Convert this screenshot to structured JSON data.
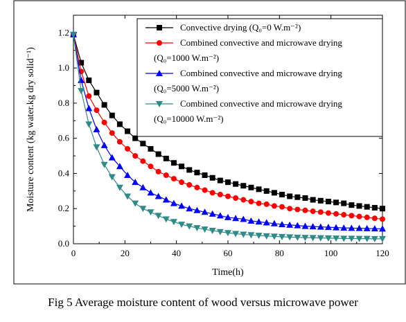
{
  "caption": "Fig 5 Average moisture content of wood versus microwave power",
  "chart_data": {
    "type": "line",
    "xlabel": "Time(h)",
    "ylabel": "Moisture content (kg water.kg dry solid⁻¹)",
    "xlim": [
      0,
      120
    ],
    "ylim": [
      0,
      1.3
    ],
    "xticks": [
      0,
      20,
      40,
      60,
      80,
      100,
      120
    ],
    "yticks": [
      0.0,
      0.2,
      0.4,
      0.6,
      0.8,
      1.0,
      1.2
    ],
    "xtick_labels": [
      "0",
      "20",
      "40",
      "60",
      "80",
      "100",
      "120"
    ],
    "ytick_labels": [
      "0.0",
      "0.2",
      "0.4",
      "0.6",
      "0.8",
      "1.0",
      "1.2"
    ],
    "grid": false,
    "legend_position": "top-right",
    "series": [
      {
        "name": "Convective drying (Q₀=0 W.m⁻²)",
        "legend_lines": [
          "Convective drying (Q₀=0 W.m⁻²)"
        ],
        "color": "#000000",
        "marker": "square",
        "x": [
          0,
          3,
          6,
          9,
          12,
          15,
          18,
          21,
          24,
          27,
          30,
          33,
          36,
          39,
          42,
          45,
          48,
          51,
          54,
          57,
          60,
          63,
          66,
          69,
          72,
          75,
          78,
          81,
          84,
          87,
          90,
          93,
          96,
          99,
          102,
          105,
          108,
          111,
          114,
          117,
          120
        ],
        "y": [
          1.19,
          1.03,
          0.93,
          0.86,
          0.79,
          0.73,
          0.68,
          0.64,
          0.6,
          0.57,
          0.54,
          0.51,
          0.485,
          0.46,
          0.44,
          0.42,
          0.405,
          0.39,
          0.375,
          0.36,
          0.35,
          0.34,
          0.33,
          0.32,
          0.31,
          0.3,
          0.29,
          0.28,
          0.27,
          0.265,
          0.26,
          0.25,
          0.245,
          0.24,
          0.235,
          0.23,
          0.22,
          0.215,
          0.21,
          0.205,
          0.2
        ]
      },
      {
        "name": "Combined convective and microwave drying (Q₀=1000 W.m⁻²)",
        "legend_lines": [
          "Combined convective and microwave drying",
          "(Q₀=1000 W.m⁻²)"
        ],
        "color": "#ff0000",
        "marker": "circle",
        "x": [
          0,
          3,
          6,
          9,
          12,
          15,
          18,
          21,
          24,
          27,
          30,
          33,
          36,
          39,
          42,
          45,
          48,
          51,
          54,
          57,
          60,
          63,
          66,
          69,
          72,
          75,
          78,
          81,
          84,
          87,
          90,
          93,
          96,
          99,
          102,
          105,
          108,
          111,
          114,
          117,
          120
        ],
        "y": [
          1.19,
          0.98,
          0.84,
          0.76,
          0.69,
          0.63,
          0.58,
          0.54,
          0.5,
          0.47,
          0.44,
          0.41,
          0.39,
          0.37,
          0.35,
          0.335,
          0.32,
          0.305,
          0.29,
          0.28,
          0.27,
          0.26,
          0.25,
          0.24,
          0.23,
          0.225,
          0.215,
          0.21,
          0.2,
          0.195,
          0.19,
          0.185,
          0.18,
          0.175,
          0.17,
          0.165,
          0.16,
          0.155,
          0.15,
          0.145,
          0.14
        ]
      },
      {
        "name": "Combined convective and microwave drying (Q₀=5000 W.m⁻²)",
        "legend_lines": [
          "Combined convective and microwave drying",
          "(Q₀=5000 W.m⁻²)"
        ],
        "color": "#0000ff",
        "marker": "triangle-up",
        "x": [
          0,
          3,
          6,
          9,
          12,
          15,
          18,
          21,
          24,
          27,
          30,
          33,
          36,
          39,
          42,
          45,
          48,
          51,
          54,
          57,
          60,
          63,
          66,
          69,
          72,
          75,
          78,
          81,
          84,
          87,
          90,
          93,
          96,
          99,
          102,
          105,
          108,
          111,
          114,
          117,
          120
        ],
        "y": [
          1.19,
          0.93,
          0.77,
          0.65,
          0.56,
          0.49,
          0.44,
          0.39,
          0.35,
          0.32,
          0.29,
          0.27,
          0.25,
          0.23,
          0.215,
          0.2,
          0.19,
          0.18,
          0.17,
          0.16,
          0.15,
          0.145,
          0.14,
          0.13,
          0.125,
          0.12,
          0.115,
          0.11,
          0.107,
          0.104,
          0.1,
          0.098,
          0.096,
          0.094,
          0.092,
          0.09,
          0.089,
          0.088,
          0.087,
          0.086,
          0.085
        ]
      },
      {
        "name": "Combined convective and microwave drying (Q₀=10000 W.m⁻²)",
        "legend_lines": [
          "Combined convective and microwave drying",
          "(Q₀=10000 W.m⁻²)"
        ],
        "color": "#2e8b87",
        "marker": "triangle-down",
        "x": [
          0,
          3,
          6,
          9,
          12,
          15,
          18,
          21,
          24,
          27,
          30,
          33,
          36,
          39,
          42,
          45,
          48,
          51,
          54,
          57,
          60,
          63,
          66,
          69,
          72,
          75,
          78,
          81,
          84,
          87,
          90,
          93,
          96,
          99,
          102,
          105,
          108,
          111,
          114,
          117,
          120
        ],
        "y": [
          1.19,
          0.87,
          0.68,
          0.55,
          0.45,
          0.38,
          0.32,
          0.27,
          0.23,
          0.2,
          0.18,
          0.16,
          0.14,
          0.125,
          0.11,
          0.1,
          0.09,
          0.082,
          0.075,
          0.068,
          0.062,
          0.057,
          0.053,
          0.05,
          0.047,
          0.044,
          0.042,
          0.04,
          0.038,
          0.036,
          0.035,
          0.034,
          0.033,
          0.032,
          0.031,
          0.03,
          0.03,
          0.029,
          0.029,
          0.028,
          0.028
        ]
      }
    ]
  }
}
